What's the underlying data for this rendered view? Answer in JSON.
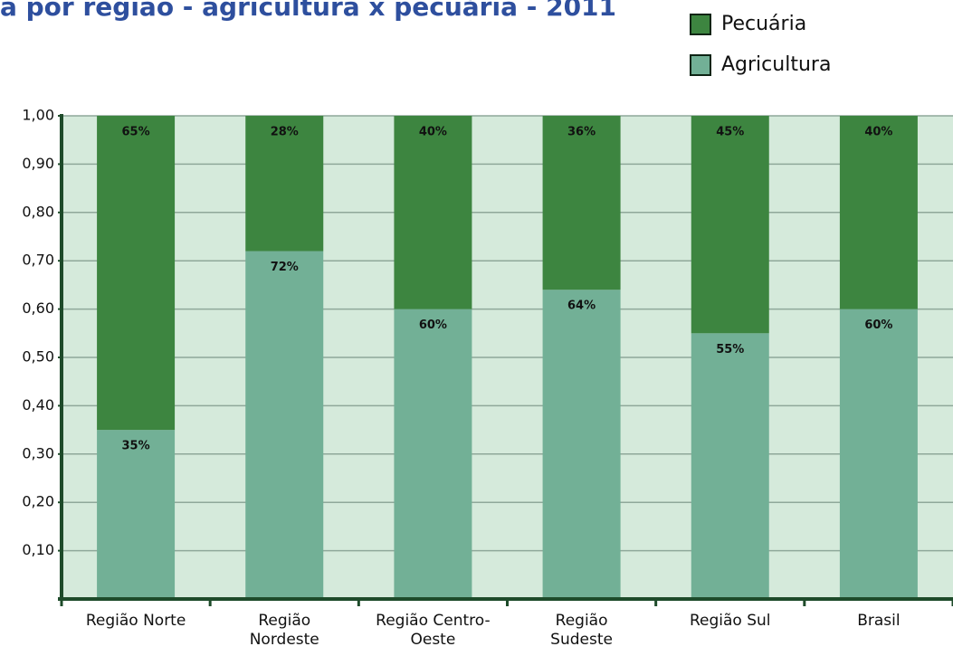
{
  "chart_data": {
    "type": "stacked_bar",
    "title": "a por região - agricultura x pecuária - 2011",
    "categories": [
      "Região Norte",
      "Região Nordeste",
      "Região Centro-Oeste",
      "Região Sudeste",
      "Região Sul",
      "Brasil"
    ],
    "series": [
      {
        "name": "Agricultura",
        "color": "#72b096",
        "values": [
          0.35,
          0.72,
          0.6,
          0.64,
          0.55,
          0.6
        ],
        "value_labels": [
          "35%",
          "72%",
          "60%",
          "64%",
          "55%",
          "60%"
        ]
      },
      {
        "name": "Pecuária",
        "color": "#3d8540",
        "values": [
          0.65,
          0.28,
          0.4,
          0.36,
          0.45,
          0.4
        ],
        "value_labels": [
          "65%",
          "28%",
          "40%",
          "36%",
          "45%",
          "40%"
        ]
      }
    ],
    "ylim": [
      0,
      1
    ],
    "yticks": [
      {
        "value": 0.1,
        "label": "0,10"
      },
      {
        "value": 0.2,
        "label": "0,20"
      },
      {
        "value": 0.3,
        "label": "0,30"
      },
      {
        "value": 0.4,
        "label": "0,40"
      },
      {
        "value": 0.5,
        "label": "0,50"
      },
      {
        "value": 0.6,
        "label": "0,60"
      },
      {
        "value": 0.7,
        "label": "0,70"
      },
      {
        "value": 0.8,
        "label": "0,80"
      },
      {
        "value": 0.9,
        "label": "0,90"
      },
      {
        "value": 1.0,
        "label": "1,00"
      }
    ],
    "grid": true,
    "legend": "top-right"
  }
}
